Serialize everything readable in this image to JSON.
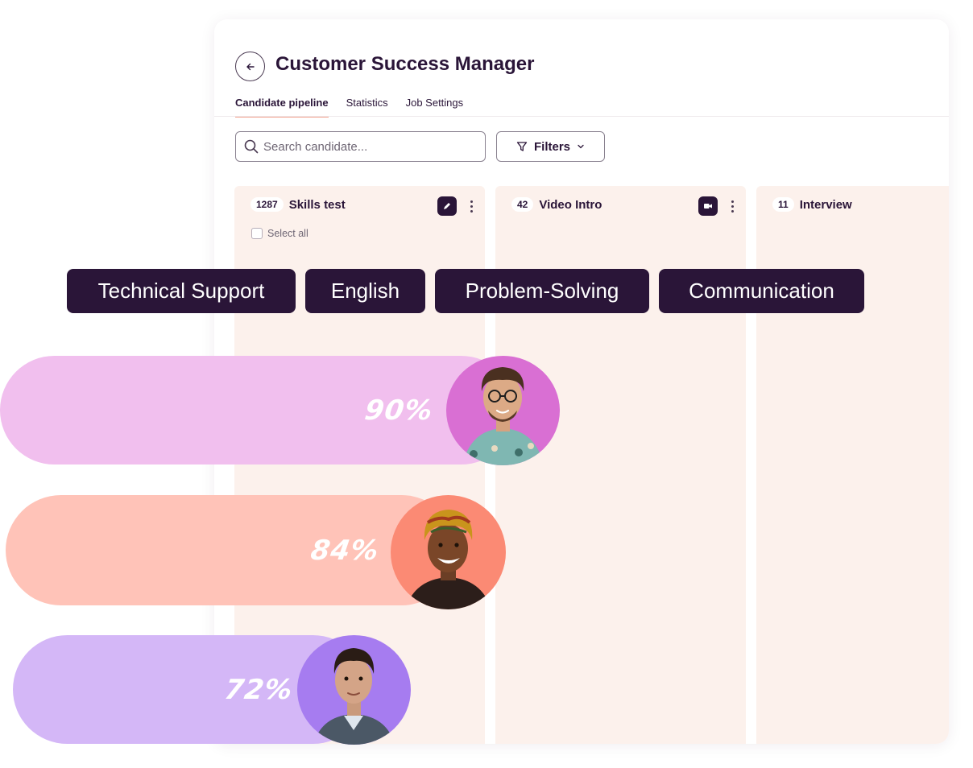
{
  "header": {
    "title": "Customer Success Manager"
  },
  "tabs": [
    {
      "label": "Candidate pipeline",
      "active": true
    },
    {
      "label": "Statistics"
    },
    {
      "label": "Job Settings"
    }
  ],
  "search": {
    "placeholder": "Search candidate..."
  },
  "filters": {
    "label": "Filters"
  },
  "columns": [
    {
      "count": "1287",
      "title": "Skills test",
      "icon": "pencil-icon",
      "select_all": "Select all"
    },
    {
      "count": "42",
      "title": "Video Intro",
      "icon": "video-camera-icon"
    },
    {
      "count": "11",
      "title": "Interview"
    }
  ],
  "skills": [
    "Technical Support",
    "English",
    "Problem-Solving",
    "Communication"
  ],
  "candidates": [
    {
      "score": "90%",
      "score_value": 90,
      "bar_color": "#f1bfee",
      "avatar_color": "#d96fd3"
    },
    {
      "score": "84%",
      "score_value": 84,
      "bar_color": "#ffc3b8",
      "avatar_color": "#fb8a74"
    },
    {
      "score": "72%",
      "score_value": 72,
      "bar_color": "#d4b7f7",
      "avatar_color": "#a67cf0"
    }
  ],
  "colors": {
    "dark": "#2a1538",
    "column_bg": "#fcf1ec",
    "tab_underline": "#f2a28f"
  }
}
